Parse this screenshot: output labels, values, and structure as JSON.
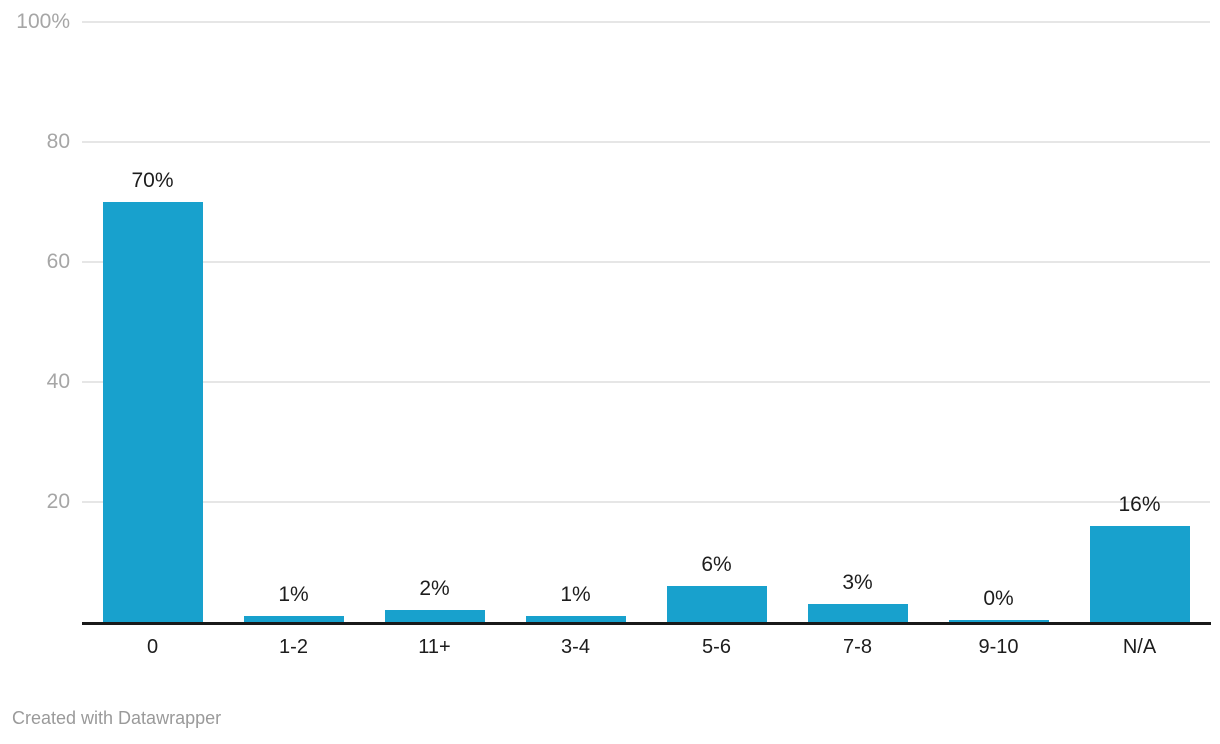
{
  "chart_data": {
    "type": "bar",
    "title": "",
    "xlabel": "",
    "ylabel": "",
    "categories": [
      "0",
      "1-2",
      "11+",
      "3-4",
      "5-6",
      "7-8",
      "9-10",
      "N/A"
    ],
    "values": [
      70,
      1,
      2,
      1,
      6,
      3,
      0,
      16
    ],
    "value_labels": [
      "70%",
      "1%",
      "2%",
      "1%",
      "6%",
      "3%",
      "0%",
      "16%"
    ],
    "ylim": [
      0,
      100
    ],
    "yticks": [
      {
        "value": 100,
        "label": "100%"
      },
      {
        "value": 80,
        "label": "80"
      },
      {
        "value": 60,
        "label": "60"
      },
      {
        "value": 40,
        "label": "40"
      },
      {
        "value": 20,
        "label": "20"
      }
    ],
    "grid": true,
    "legend": "none"
  },
  "colors": {
    "background": "#ffffff",
    "bar": "#18a1cd",
    "gridline": "#e6e6e6",
    "axis_line": "#191919",
    "tick_label": "#a6a6a6",
    "value_label": "#1d1d1d",
    "category_label": "#1d1d1d",
    "attribution": "#9a9a9a"
  },
  "footer": {
    "attribution": "Created with Datawrapper"
  }
}
